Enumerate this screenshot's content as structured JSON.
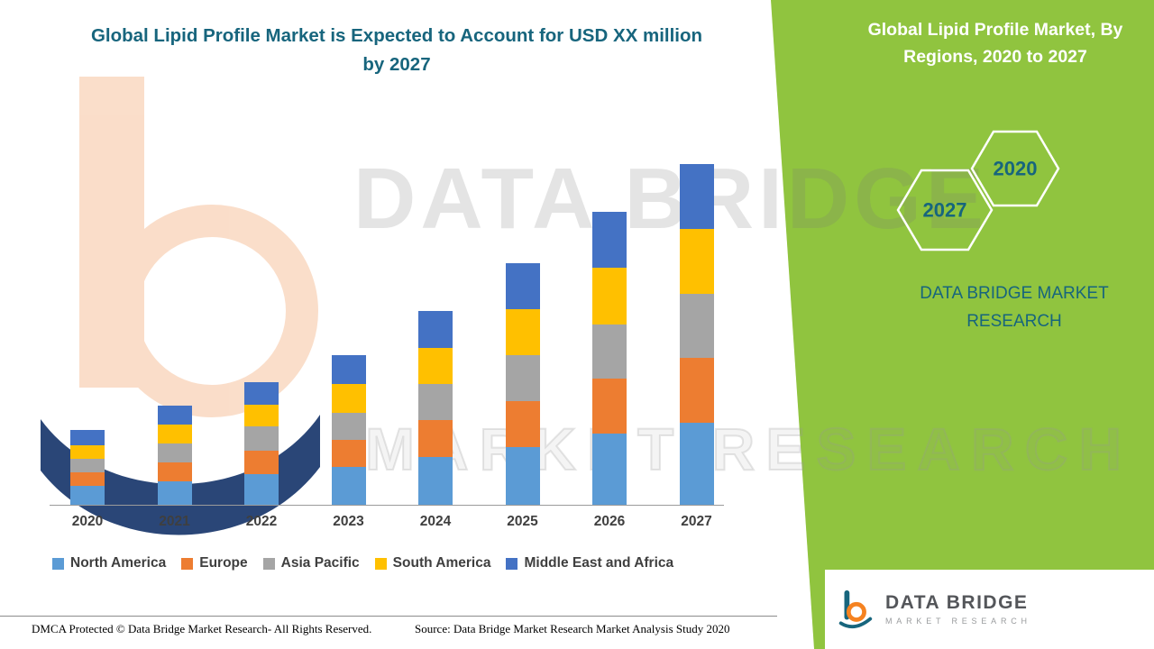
{
  "header": {
    "title": "Global Lipid Profile Market is Expected to Account for USD XX million by 2027"
  },
  "side_panel": {
    "heading": "Global Lipid Profile Market, By Regions, 2020 to 2027",
    "hex_left_label": "2027",
    "hex_right_label": "2020",
    "brand_text": "DATA BRIDGE MARKET RESEARCH"
  },
  "watermark": {
    "line1": "DATA BRIDGE",
    "line2": "MARKET RESEARCH"
  },
  "logo": {
    "name": "DATA BRIDGE",
    "tagline": "MARKET RESEARCH"
  },
  "footer": {
    "dmca": "DMCA Protected © Data Bridge Market Research- All Rights Reserved.",
    "source": "Source: Data Bridge Market Research Market Analysis Study 2020"
  },
  "colors": {
    "panel_green": "#90C43F",
    "brand_teal": "#17657D",
    "north_america": "#5B9BD5",
    "europe": "#ED7D31",
    "asia_pacific": "#A5A5A5",
    "south_america": "#FFC000",
    "middle_east_africa": "#4472C4"
  },
  "chart_data": {
    "type": "bar",
    "stacked": true,
    "title": "Global Lipid Profile Market is Expected to Account for USD XX million by 2027",
    "categories": [
      "2020",
      "2021",
      "2022",
      "2023",
      "2024",
      "2025",
      "2026",
      "2027"
    ],
    "series": [
      {
        "name": "North America",
        "color": "#5B9BD5",
        "values": [
          5.5,
          7,
          9,
          11,
          14,
          17,
          21,
          24
        ]
      },
      {
        "name": "Europe",
        "color": "#ED7D31",
        "values": [
          4,
          5.5,
          7,
          8,
          11,
          13.5,
          16,
          19
        ]
      },
      {
        "name": "Asia Pacific",
        "color": "#A5A5A5",
        "values": [
          4,
          5.5,
          7,
          8,
          10.5,
          13.5,
          16,
          19
        ]
      },
      {
        "name": "South America",
        "color": "#FFC000",
        "values": [
          4,
          5.5,
          6.5,
          8.5,
          10.5,
          13.5,
          16.5,
          19
        ]
      },
      {
        "name": "Middle East and Africa",
        "color": "#4472C4",
        "values": [
          4.5,
          5.5,
          6.5,
          8.5,
          11,
          13.5,
          16.5,
          19
        ]
      }
    ],
    "totals": [
      22,
      29,
      36,
      44,
      57,
      71,
      86,
      100
    ],
    "units": "relative index (actual values masked as 'USD XX million' in image)",
    "ylim": [
      0,
      100
    ],
    "y_axis_visible": false,
    "grid": false,
    "legend_position": "bottom"
  }
}
